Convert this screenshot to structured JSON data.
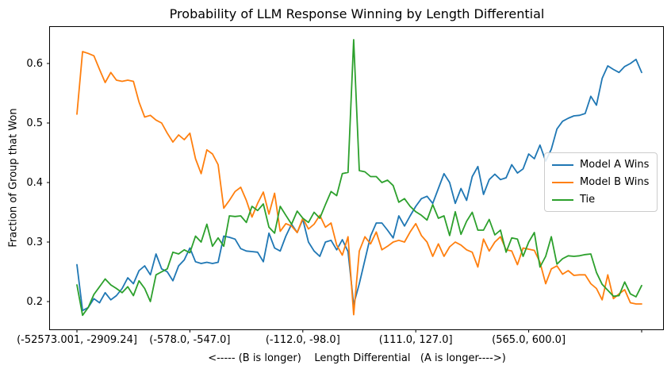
{
  "chart_data": {
    "type": "line",
    "title": "Probability of LLM Response Winning by Length Differential",
    "xlabel": "<----- (B is longer)    Length Differential   (A is longer---->)",
    "ylabel": "Fraction of Group that Won",
    "x_axis": {
      "tick_positions": [
        0,
        20,
        40,
        60,
        80,
        100
      ],
      "tick_labels": [
        "(-52573.001, -2909.24]",
        "(-578.0, -547.0]",
        "(-112.0, -98.0]",
        "(111.0, 127.0]",
        "(565.0, 600.0]",
        ""
      ]
    },
    "y_axis": {
      "ticks": [
        0.2,
        0.3,
        0.4,
        0.5,
        0.6
      ],
      "range": [
        0.152,
        0.661
      ]
    },
    "grid": false,
    "legend_position": "center right",
    "n_points": 101,
    "series": [
      {
        "name": "Model A Wins",
        "color": "#1f77b4",
        "values": [
          0.262,
          0.185,
          0.19,
          0.205,
          0.198,
          0.215,
          0.203,
          0.21,
          0.222,
          0.24,
          0.23,
          0.252,
          0.26,
          0.245,
          0.28,
          0.255,
          0.25,
          0.235,
          0.26,
          0.27,
          0.29,
          0.267,
          0.264,
          0.266,
          0.264,
          0.266,
          0.31,
          0.308,
          0.305,
          0.289,
          0.285,
          0.284,
          0.283,
          0.267,
          0.315,
          0.29,
          0.285,
          0.31,
          0.33,
          0.316,
          0.338,
          0.3,
          0.285,
          0.276,
          0.3,
          0.303,
          0.287,
          0.304,
          0.284,
          0.195,
          0.23,
          0.27,
          0.31,
          0.332,
          0.332,
          0.32,
          0.307,
          0.344,
          0.327,
          0.344,
          0.36,
          0.373,
          0.377,
          0.365,
          0.39,
          0.415,
          0.4,
          0.365,
          0.39,
          0.37,
          0.41,
          0.427,
          0.38,
          0.405,
          0.414,
          0.405,
          0.408,
          0.43,
          0.416,
          0.423,
          0.448,
          0.44,
          0.463,
          0.436,
          0.456,
          0.49,
          0.503,
          0.508,
          0.512,
          0.513,
          0.516,
          0.545,
          0.53,
          0.575,
          0.596,
          0.59,
          0.585,
          0.595,
          0.6,
          0.607,
          0.585
        ]
      },
      {
        "name": "Model B Wins",
        "color": "#ff7f0e",
        "values": [
          0.515,
          0.62,
          0.617,
          0.613,
          0.59,
          0.568,
          0.585,
          0.572,
          0.57,
          0.572,
          0.57,
          0.535,
          0.51,
          0.513,
          0.505,
          0.5,
          0.483,
          0.468,
          0.48,
          0.472,
          0.483,
          0.44,
          0.415,
          0.455,
          0.448,
          0.43,
          0.357,
          0.37,
          0.385,
          0.392,
          0.37,
          0.342,
          0.365,
          0.384,
          0.347,
          0.382,
          0.318,
          0.331,
          0.327,
          0.316,
          0.34,
          0.322,
          0.33,
          0.345,
          0.325,
          0.332,
          0.295,
          0.278,
          0.309,
          0.178,
          0.285,
          0.309,
          0.297,
          0.317,
          0.287,
          0.293,
          0.3,
          0.303,
          0.3,
          0.317,
          0.331,
          0.311,
          0.3,
          0.276,
          0.297,
          0.276,
          0.292,
          0.3,
          0.295,
          0.287,
          0.283,
          0.258,
          0.305,
          0.285,
          0.3,
          0.309,
          0.287,
          0.285,
          0.262,
          0.29,
          0.288,
          0.286,
          0.266,
          0.23,
          0.255,
          0.26,
          0.246,
          0.252,
          0.244,
          0.245,
          0.245,
          0.23,
          0.222,
          0.203,
          0.245,
          0.205,
          0.213,
          0.22,
          0.198,
          0.196,
          0.196
        ]
      },
      {
        "name": "Tie",
        "color": "#2ca02c",
        "values": [
          0.228,
          0.177,
          0.19,
          0.212,
          0.225,
          0.238,
          0.228,
          0.222,
          0.215,
          0.225,
          0.21,
          0.235,
          0.222,
          0.2,
          0.245,
          0.25,
          0.255,
          0.283,
          0.28,
          0.287,
          0.282,
          0.31,
          0.3,
          0.33,
          0.293,
          0.307,
          0.293,
          0.344,
          0.343,
          0.344,
          0.333,
          0.36,
          0.353,
          0.364,
          0.325,
          0.315,
          0.36,
          0.345,
          0.33,
          0.352,
          0.34,
          0.333,
          0.35,
          0.34,
          0.363,
          0.385,
          0.378,
          0.415,
          0.417,
          0.64,
          0.42,
          0.418,
          0.41,
          0.41,
          0.4,
          0.404,
          0.395,
          0.367,
          0.373,
          0.36,
          0.351,
          0.345,
          0.337,
          0.363,
          0.34,
          0.344,
          0.311,
          0.351,
          0.313,
          0.335,
          0.35,
          0.32,
          0.32,
          0.338,
          0.312,
          0.32,
          0.283,
          0.307,
          0.305,
          0.276,
          0.3,
          0.316,
          0.258,
          0.276,
          0.309,
          0.263,
          0.272,
          0.277,
          0.276,
          0.277,
          0.279,
          0.28,
          0.249,
          0.229,
          0.219,
          0.209,
          0.21,
          0.233,
          0.213,
          0.208,
          0.227
        ]
      }
    ]
  }
}
